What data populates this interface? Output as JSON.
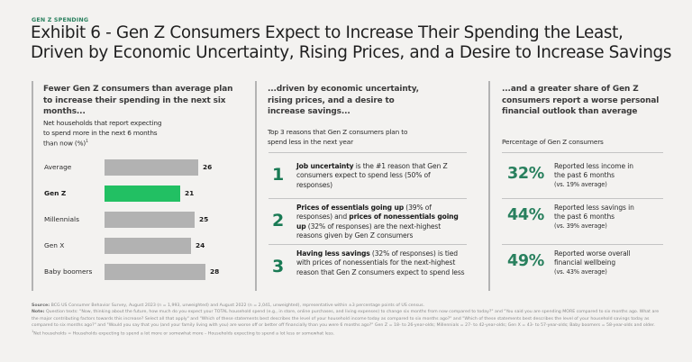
{
  "eyebrow": "GEN Z SPENDING",
  "title": "Exhibit 6 - Gen Z Consumers Expect to Increase Their Spending the Least, Driven by Economic Uncertainty, Rising Prices, and a Desire to Increase Savings",
  "colors": {
    "accent_green": "#29805e",
    "highlight_bar": "#22c063",
    "default_bar": "#b2b2b2",
    "background": "#f3f2f0"
  },
  "left_column": {
    "heading": "Fewer Gen Z consumers than average plan to increase their spending in the next six months...",
    "subheading_lines": [
      "Net households that report expecting",
      "to spend more in the next 6 months",
      "than now (%)"
    ],
    "subheading_footnote_marker": "1"
  },
  "chart_data": {
    "type": "bar",
    "orientation": "horizontal",
    "title": "Net households that report expecting to spend more in the next 6 months than now (%)",
    "xlabel": "",
    "ylabel": "",
    "categories": [
      "Average",
      "Gen Z",
      "Millennials",
      "Gen X",
      "Baby boomers"
    ],
    "values": [
      26,
      21,
      25,
      24,
      28
    ],
    "highlight": "Gen Z",
    "xlim": [
      0,
      28
    ],
    "grid": false,
    "data_labels": true
  },
  "middle_column": {
    "heading_lines": [
      "...driven by economic uncertainty,",
      "rising prices, and a desire to",
      "increase savings..."
    ],
    "subheading_lines": [
      "Top 3 reasons that Gen Z consumers plan to",
      "spend less in the next year"
    ],
    "reasons": [
      {
        "rank": "1",
        "segments": [
          {
            "text": "Job uncertainty",
            "bold": true
          },
          {
            "text": " is the #1 reason that Gen Z consumers expect to spend less (50% of responses)",
            "bold": false
          }
        ]
      },
      {
        "rank": "2",
        "segments": [
          {
            "text": "Prices of essentials going up",
            "bold": true
          },
          {
            "text": " (39% of responses) and ",
            "bold": false
          },
          {
            "text": "prices of nonessentials going up",
            "bold": true
          },
          {
            "text": " (32% of responses) are the next-highest reasons given by Gen Z consumers",
            "bold": false
          }
        ]
      },
      {
        "rank": "3",
        "segments": [
          {
            "text": "Having less savings",
            "bold": true
          },
          {
            "text": " (32% of responses) is tied with prices of nonessentials for the next-highest reason that Gen Z consumers expect to spend less",
            "bold": false
          }
        ]
      }
    ]
  },
  "right_column": {
    "heading_lines": [
      "...and a greater share of Gen Z",
      "consumers report a worse personal",
      "financial outlook than average"
    ],
    "subheading": "Percentage of Gen Z consumers",
    "stats": [
      {
        "value": "32%",
        "line1": "Reported less income in",
        "line2": "the past 6 months",
        "comparison": "(vs. 19% average)"
      },
      {
        "value": "44%",
        "line1": "Reported less savings in",
        "line2": "the past 6 months",
        "comparison": "(vs. 39% average)"
      },
      {
        "value": "49%",
        "line1": "Reported worse overall",
        "line2": "financial wellbeing",
        "comparison": "(vs. 43% average)"
      }
    ]
  },
  "footnotes": {
    "source_label": "Source:",
    "source_text": " BCG US Consumer Behavior Survey, August 2023 (n = 1,993, unweighted) and August 2022 (n = 2,041, unweighted), representative within ±3 percentage points of US census.",
    "note_label": "Note:",
    "note_text": " Question texts: \"Now, thinking about the future, how much do you expect your TOTAL household spend (e.g., in store, online purchases, and living expenses) to change six months from now compared to today?\" and \"You said you are spending MORE compared to six months ago. What are the major contributing factors towards this increase? Select all that apply\" and \"Which of these statements best describes the level of your household income today as compared to six months ago?\" and \"Which of these statements best describes the level of your household savings today as compared to six months ago?\" and \"Would you say that you (and your family living with you) are worse off or better off financially than you were 6 months ago?\" Gen Z = 18- to 26-year-olds; Millennials = 27- to 42-year-olds; Gen X = 43- to 57-year-olds; Baby boomers = 58-year-olds and older.",
    "footnote_marker": "1",
    "footnote_text": "Net households = Households expecting to spend a lot more or somewhat more – Households expecting to spend a lot less or somewhat less."
  }
}
